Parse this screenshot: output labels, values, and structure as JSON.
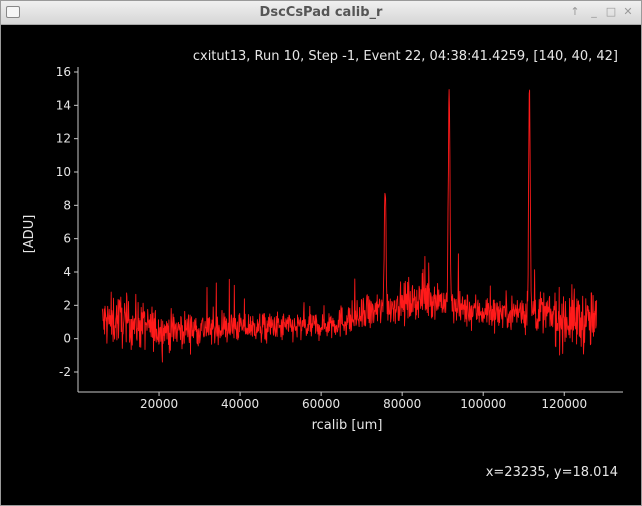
{
  "window": {
    "title": "DscCsPad calib_r",
    "buttons": {
      "up": "↑",
      "minimize": "_",
      "maximize": "□",
      "close": "✕"
    }
  },
  "plot": {
    "info_label": "cxitut13, Run 10, Step -1, Event 22, 04:38:41.4259, [140, 40, 42]",
    "cursor_readout": "x=23235, y=18.014"
  },
  "chart_data": {
    "type": "line",
    "title": "",
    "xlabel": "rcalib [um]",
    "ylabel": "[ADU]",
    "xlim": [
      0,
      134500
    ],
    "ylim": [
      -3.2,
      16.3
    ],
    "x_ticks": [
      20000,
      40000,
      60000,
      80000,
      100000,
      120000
    ],
    "x_tick_labels": [
      "20000",
      "40000",
      "60000",
      "80000",
      "100000",
      "120000"
    ],
    "y_ticks": [
      -2,
      0,
      2,
      4,
      6,
      8,
      10,
      12,
      14,
      16
    ],
    "y_tick_labels": [
      "-2",
      "0",
      "2",
      "4",
      "6",
      "8",
      "10",
      "12",
      "14",
      "16"
    ],
    "line_color": "#ff1a1a",
    "grid": false,
    "series": [
      {
        "profile_x": [
          6000,
          8000,
          10000,
          12000,
          16000,
          20000,
          26000,
          32000,
          40000,
          48000,
          56000,
          62000,
          68000,
          72000,
          78000,
          82000,
          86000,
          89000,
          93000,
          97000,
          102000,
          106000,
          110000,
          114000,
          118000,
          122000,
          126000,
          128000
        ],
        "profile_y": [
          1.0,
          1.0,
          1.2,
          1.0,
          0.8,
          0.5,
          0.6,
          0.6,
          0.7,
          0.7,
          0.7,
          0.9,
          1.2,
          1.5,
          2.0,
          2.3,
          2.4,
          2.4,
          1.8,
          1.7,
          1.6,
          1.6,
          1.6,
          1.6,
          1.2,
          1.2,
          1.0,
          1.0
        ],
        "noise_x": [
          6000,
          14000,
          24000,
          40000,
          60000,
          74000,
          86000,
          93000,
          106000,
          114000,
          120000,
          128000
        ],
        "noise_amp": [
          1.6,
          1.5,
          1.1,
          0.9,
          0.9,
          1.1,
          1.2,
          1.0,
          1.0,
          1.3,
          1.8,
          1.8
        ],
        "peaks": [
          {
            "x": 75800,
            "height": 9.8
          },
          {
            "x": 91600,
            "height": 15.2
          },
          {
            "x": 111400,
            "height": 14.8
          }
        ]
      }
    ]
  }
}
